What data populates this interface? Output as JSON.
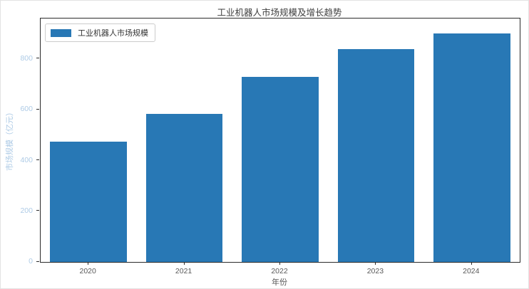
{
  "title": "工业机器人市场规模及增长趋势",
  "legend": {
    "label": "工业机器人市场规模"
  },
  "axes": {
    "x_label": "年份",
    "y_label": "市场规模（亿元）",
    "y_ticks": [
      0,
      200,
      400,
      600,
      800
    ]
  },
  "colors": {
    "bar": "#2878b5",
    "y_tick_label": "#aecbe6",
    "x_tick_label": "#595959",
    "title": "#3d3d3d",
    "spine": "#2b2b2b",
    "legend_border": "#cccccc"
  },
  "chart_data": {
    "type": "bar",
    "categories": [
      "2020",
      "2021",
      "2022",
      "2023",
      "2024"
    ],
    "values": [
      475,
      585,
      730,
      840,
      900
    ],
    "series_name": "工业机器人市场规模",
    "title": "工业机器人市场规模及增长趋势",
    "xlabel": "年份",
    "ylabel": "市场规模（亿元）",
    "ylim": [
      0,
      960
    ],
    "y_tick_step": 200,
    "grid": false,
    "legend_position": "upper left",
    "bar_color": "#2878b5",
    "bar_width_fraction": 0.8
  }
}
